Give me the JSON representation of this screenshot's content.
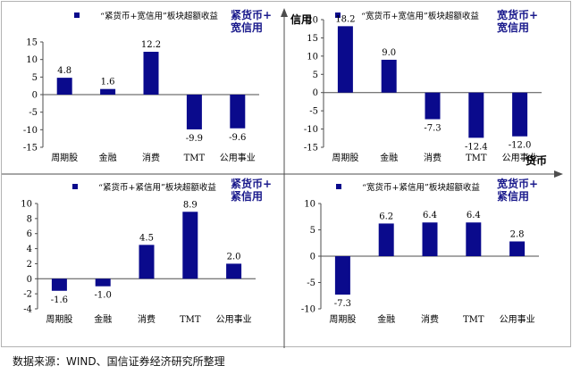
{
  "axes": {
    "vertical_label": "信用",
    "horizontal_label": "货币"
  },
  "source_note": "数据来源：WIND、国信证券经济研究所整理",
  "colors": {
    "bar": "#0a0a8c",
    "tag": "#1a1a8c",
    "axis": "#4d4d4d"
  },
  "chart_data": [
    {
      "type": "bar",
      "title": "“紧货币+宽信用”板块超额收益",
      "quadrant_label": [
        "紧货币+",
        "宽信用"
      ],
      "categories": [
        "周期股",
        "金融",
        "消费",
        "TMT",
        "公用事业"
      ],
      "values": [
        4.8,
        1.6,
        12.2,
        -9.9,
        -9.6
      ],
      "data_labels": [
        "4.8",
        "1.6",
        "12.2",
        "-9.9",
        "-9.6"
      ],
      "ylim": [
        -15,
        15
      ],
      "yticks": [
        -15,
        -10,
        -5,
        0,
        5,
        10,
        15
      ],
      "legend": "top",
      "grid": false
    },
    {
      "type": "bar",
      "title": "“宽货币+宽信用”板块超额收益",
      "quadrant_label": [
        "宽货币+",
        "宽信用"
      ],
      "categories": [
        "周期股",
        "金融",
        "消费",
        "TMT",
        "公用事业"
      ],
      "values": [
        18.2,
        9.0,
        -7.3,
        -12.4,
        -12.0
      ],
      "data_labels": [
        "18.2",
        "9.0",
        "-7.3",
        "-12.4",
        "-12.0"
      ],
      "ylim": [
        -15,
        20
      ],
      "yticks": [
        -15,
        -10,
        -5,
        0,
        5,
        10,
        15,
        20
      ],
      "legend": "top",
      "grid": false
    },
    {
      "type": "bar",
      "title": "“紧货币+紧信用”板块超额收益",
      "quadrant_label": [
        "紧货币+",
        "紧信用"
      ],
      "categories": [
        "周期股",
        "金融",
        "消费",
        "TMT",
        "公用事业"
      ],
      "values": [
        -1.6,
        -1.0,
        4.5,
        8.9,
        2.0
      ],
      "data_labels": [
        "-1.6",
        "-1.0",
        "4.5",
        "8.9",
        "2.0"
      ],
      "ylim": [
        -4,
        10
      ],
      "yticks": [
        -4,
        -2,
        0,
        2,
        4,
        6,
        8,
        10
      ],
      "legend": "top",
      "grid": false
    },
    {
      "type": "bar",
      "title": "“宽货币+紧信用”板块超额收益",
      "quadrant_label": [
        "宽货币+",
        "紧信用"
      ],
      "categories": [
        "周期股",
        "金融",
        "消费",
        "TMT",
        "公用事业"
      ],
      "values": [
        -7.3,
        6.2,
        6.4,
        6.4,
        2.8
      ],
      "data_labels": [
        "-7.3",
        "6.2",
        "6.4",
        "6.4",
        "2.8"
      ],
      "ylim": [
        -10,
        10
      ],
      "yticks": [
        -10,
        -5,
        0,
        5,
        10
      ],
      "legend": "top",
      "grid": false
    }
  ]
}
